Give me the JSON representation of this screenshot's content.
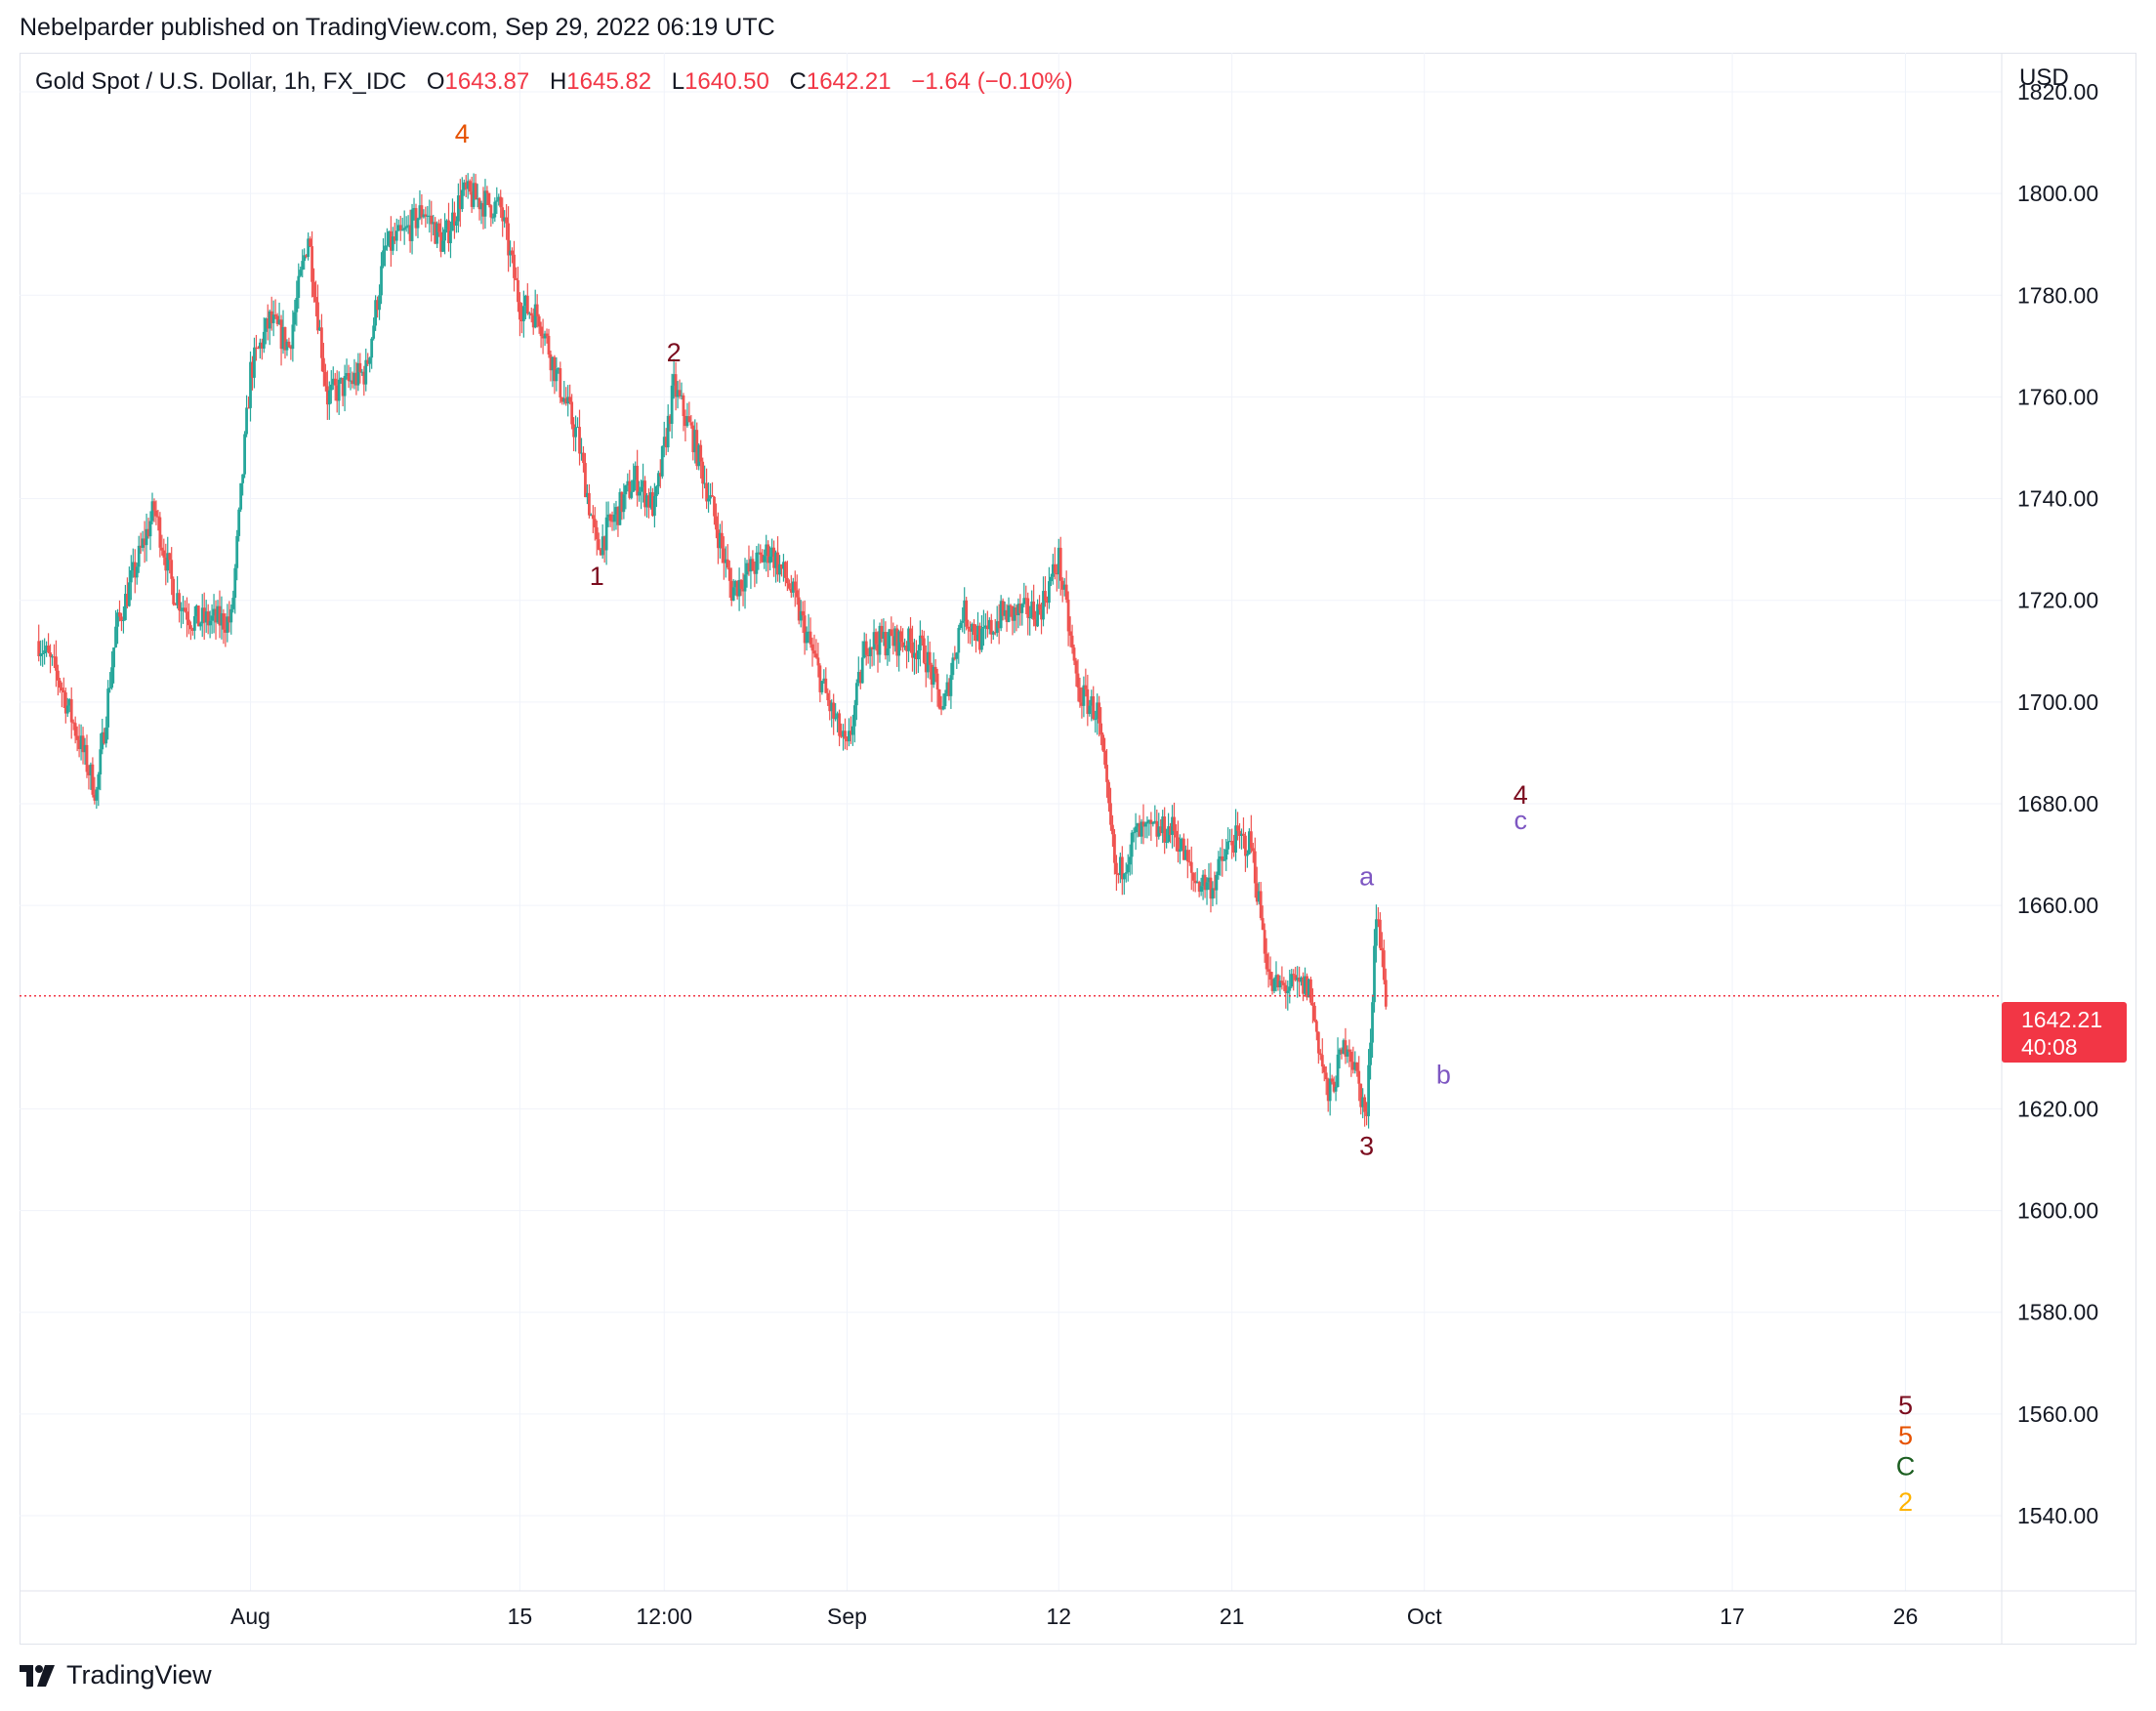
{
  "publisher_line": "Nebelparder published on TradingView.com, Sep 29, 2022 06:19 UTC",
  "legend": {
    "symbol": "Gold Spot / U.S. Dollar, 1h, FX_IDC",
    "open_label": "O",
    "open": "1643.87",
    "high_label": "H",
    "high": "1645.82",
    "low_label": "L",
    "low": "1640.50",
    "close_label": "C",
    "close": "1642.21",
    "change": "−1.64 (−0.10%)"
  },
  "currency": "USD",
  "price_tag": {
    "price": "1642.21",
    "countdown": "40:08"
  },
  "footer": {
    "brand": "TradingView",
    "logo_icon": "tradingview-logo-icon"
  },
  "colors": {
    "up": "#26a69a",
    "down": "#ef5350",
    "last_price": "#f23645",
    "dark_red": "#7b0c1e",
    "orange": "#e65100",
    "purple": "#7e57c2",
    "green": "#1b5e20",
    "yellow": "#ffb300"
  },
  "chart_data": {
    "type": "candlestick",
    "interval": "1h",
    "x_ticks": [
      "Aug",
      "15",
      "12:00",
      "Sep",
      "12",
      "21",
      "Oct",
      "17",
      "26"
    ],
    "y_ticks": [
      "1820.00",
      "1800.00",
      "1780.00",
      "1760.00",
      "1740.00",
      "1720.00",
      "1700.00",
      "1680.00",
      "1660.00",
      "1620.00",
      "1600.00",
      "1580.00",
      "1560.00",
      "1540.00"
    ],
    "ylim": [
      1530,
      1825
    ],
    "grid": true,
    "last_price": 1642.21,
    "price_path": [
      {
        "date": "2022-07-21",
        "price": 1712
      },
      {
        "date": "2022-07-22",
        "price": 1705
      },
      {
        "date": "2022-07-24",
        "price": 1682
      },
      {
        "date": "2022-07-25",
        "price": 1714
      },
      {
        "date": "2022-07-27",
        "price": 1738
      },
      {
        "date": "2022-07-28",
        "price": 1722
      },
      {
        "date": "2022-07-29",
        "price": 1716
      },
      {
        "date": "2022-07-31",
        "price": 1716
      },
      {
        "date": "2022-08-01",
        "price": 1765
      },
      {
        "date": "2022-08-02",
        "price": 1775
      },
      {
        "date": "2022-08-03",
        "price": 1770
      },
      {
        "date": "2022-08-04",
        "price": 1792
      },
      {
        "date": "2022-08-05",
        "price": 1760
      },
      {
        "date": "2022-08-07",
        "price": 1765
      },
      {
        "date": "2022-08-08",
        "price": 1789
      },
      {
        "date": "2022-08-09",
        "price": 1792
      },
      {
        "date": "2022-08-10",
        "price": 1797
      },
      {
        "date": "2022-08-11",
        "price": 1790
      },
      {
        "date": "2022-08-12",
        "price": 1800
      },
      {
        "date": "2022-08-14",
        "price": 1797
      },
      {
        "date": "2022-08-15",
        "price": 1778
      },
      {
        "date": "2022-08-16",
        "price": 1776
      },
      {
        "date": "2022-08-17",
        "price": 1763
      },
      {
        "date": "2022-08-18",
        "price": 1752
      },
      {
        "date": "2022-08-19",
        "price": 1730
      },
      {
        "date": "2022-08-21",
        "price": 1744
      },
      {
        "date": "2022-08-22",
        "price": 1738
      },
      {
        "date": "2022-08-23",
        "price": 1762
      },
      {
        "date": "2022-08-24",
        "price": 1752
      },
      {
        "date": "2022-08-25",
        "price": 1738
      },
      {
        "date": "2022-08-26",
        "price": 1722
      },
      {
        "date": "2022-08-28",
        "price": 1730
      },
      {
        "date": "2022-08-29",
        "price": 1723
      },
      {
        "date": "2022-08-30",
        "price": 1712
      },
      {
        "date": "2022-08-31",
        "price": 1700
      },
      {
        "date": "2022-09-01",
        "price": 1690
      },
      {
        "date": "2022-09-02",
        "price": 1712
      },
      {
        "date": "2022-09-04",
        "price": 1712
      },
      {
        "date": "2022-09-05",
        "price": 1710
      },
      {
        "date": "2022-09-06",
        "price": 1698
      },
      {
        "date": "2022-09-07",
        "price": 1718
      },
      {
        "date": "2022-09-08",
        "price": 1712
      },
      {
        "date": "2022-09-09",
        "price": 1717
      },
      {
        "date": "2022-09-11",
        "price": 1718
      },
      {
        "date": "2022-09-12",
        "price": 1728
      },
      {
        "date": "2022-09-13",
        "price": 1702
      },
      {
        "date": "2022-09-14",
        "price": 1698
      },
      {
        "date": "2022-09-15",
        "price": 1665
      },
      {
        "date": "2022-09-16",
        "price": 1674
      },
      {
        "date": "2022-09-18",
        "price": 1675
      },
      {
        "date": "2022-09-19",
        "price": 1665
      },
      {
        "date": "2022-09-20",
        "price": 1664
      },
      {
        "date": "2022-09-21",
        "price": 1673
      },
      {
        "date": "2022-09-22",
        "price": 1672
      },
      {
        "date": "2022-09-23",
        "price": 1644
      },
      {
        "date": "2022-09-25",
        "price": 1644
      },
      {
        "date": "2022-09-26",
        "price": 1622
      },
      {
        "date": "2022-09-27",
        "price": 1634
      },
      {
        "date": "2022-09-28",
        "price": 1618
      },
      {
        "date": "2022-09-28T12",
        "price": 1660
      },
      {
        "date": "2022-09-29",
        "price": 1642.21
      }
    ],
    "wave_labels": [
      {
        "text": "4",
        "date": "2022-08-12",
        "price": 1810,
        "color": "#e65100"
      },
      {
        "text": "2",
        "date": "2022-08-23",
        "price": 1767,
        "color": "#7b0c1e"
      },
      {
        "text": "1",
        "date": "2022-08-19",
        "price": 1723,
        "color": "#7b0c1e"
      },
      {
        "text": "3",
        "date": "2022-09-28",
        "price": 1611,
        "color": "#7b0c1e"
      },
      {
        "text": "a",
        "date": "2022-09-28",
        "price": 1664,
        "color": "#7e57c2"
      },
      {
        "text": "b",
        "date": "2022-10-02",
        "price": 1625,
        "color": "#7e57c2"
      },
      {
        "text": "4",
        "date": "2022-10-06",
        "price": 1680,
        "color": "#7b0c1e"
      },
      {
        "text": "c",
        "date": "2022-10-06",
        "price": 1675,
        "color": "#7e57c2"
      },
      {
        "text": "5",
        "date": "2022-10-26",
        "price": 1560,
        "color": "#7b0c1e"
      },
      {
        "text": "5",
        "date": "2022-10-26",
        "price": 1554,
        "color": "#e65100"
      },
      {
        "text": "C",
        "date": "2022-10-26",
        "price": 1548,
        "color": "#1b5e20"
      },
      {
        "text": "2",
        "date": "2022-10-26",
        "price": 1541,
        "color": "#ffb300"
      }
    ]
  }
}
